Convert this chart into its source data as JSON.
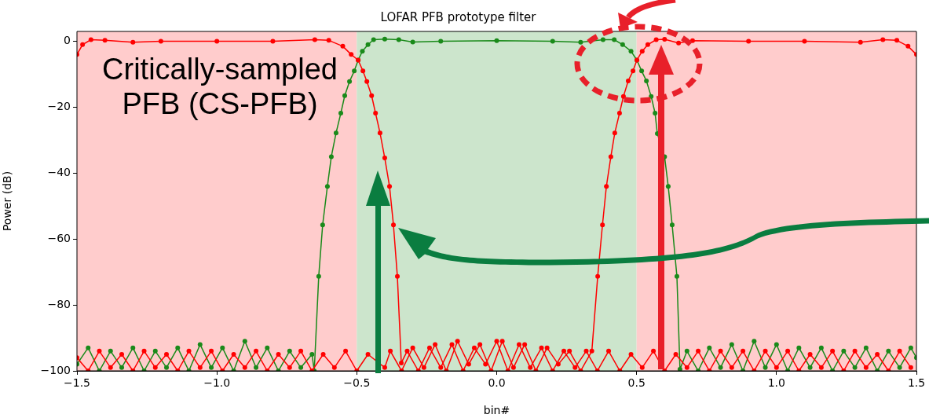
{
  "chart_data": {
    "type": "line",
    "title": "LOFAR PFB prototype filter",
    "xlabel": "bin#",
    "ylabel": "Power (dB)",
    "annotations": [
      "Critically-sampled\nPFB (CS-PFB)"
    ],
    "xlim": [
      -1.5,
      1.5
    ],
    "xticks": [
      {
        "value": -1.5,
        "label": "−1.5"
      },
      {
        "value": -1.0,
        "label": "−1.0"
      },
      {
        "value": -0.5,
        "label": "−0.5"
      },
      {
        "value": 0,
        "label": "0.0"
      },
      {
        "value": 0.5,
        "label": "0.5"
      },
      {
        "value": 1.0,
        "label": "1.0"
      },
      {
        "value": 1.5,
        "label": "1.5"
      }
    ],
    "ylim": [
      -100,
      3
    ],
    "yticks": [
      {
        "value": -100,
        "label": "−100"
      },
      {
        "value": -80,
        "label": "−80"
      },
      {
        "value": -60,
        "label": "−60"
      },
      {
        "value": -40,
        "label": "−40"
      },
      {
        "value": -20,
        "label": "−20"
      },
      0
    ],
    "grid": false,
    "legend": false,
    "marker": "circle",
    "line_style": "solid",
    "bands": [
      {
        "axis": "x",
        "from": -1.5,
        "to": -0.5,
        "color": "#ffcccc"
      },
      {
        "axis": "x",
        "from": -0.5,
        "to": 0.5,
        "color": "#cce5cc"
      },
      {
        "axis": "x",
        "from": 0.5,
        "to": 1.5,
        "color": "#ffcccc"
      }
    ],
    "series": [
      {
        "color": "#ff0000",
        "x": [
          -1.5,
          -1.48,
          -1.45,
          -1.4,
          -1.3,
          -1.2,
          -1.0,
          -0.8,
          -0.65,
          -0.6,
          -0.55,
          -0.52,
          -0.495,
          -0.478,
          -0.464,
          -0.447,
          -0.433,
          -0.417,
          -0.4,
          -0.383,
          -0.369,
          -0.355,
          -0.341,
          -0.32,
          -0.28,
          -0.24,
          -0.2,
          -0.16,
          -0.12,
          -0.08,
          -0.04,
          0,
          0.04,
          0.08,
          0.12,
          0.16,
          0.2,
          0.24,
          0.28,
          0.32,
          0.36,
          0.4,
          0.44,
          0.48,
          0.52,
          0.56,
          0.6,
          0.64,
          0.68,
          0.72,
          0.76,
          0.8,
          0.84,
          0.88,
          0.92,
          0.96,
          1.0,
          1.04,
          1.08,
          1.12,
          1.16,
          1.2,
          1.24,
          1.28,
          1.32,
          1.36,
          1.4,
          1.44,
          1.48
        ],
        "values": [
          -4,
          -1,
          0.5,
          0.3,
          -0.3,
          0,
          0,
          0,
          0.5,
          0.3,
          -1.5,
          -4,
          -5.7,
          -9,
          -12.2,
          -16.5,
          -21.8,
          -27.8,
          -35.4,
          -44,
          -55.7,
          -71.3,
          -97.6,
          -94,
          -100,
          -93,
          -99,
          -92,
          -100,
          -93,
          -98,
          -91,
          -100,
          -92,
          -99,
          -93,
          -100,
          -94,
          -99,
          -94,
          -100,
          -94,
          -100,
          -95,
          -99,
          -94,
          -100,
          -95,
          -99,
          -94,
          -100,
          -94,
          -99,
          -94,
          -100,
          -94,
          -99,
          -94,
          -100,
          -95,
          -99,
          -94,
          -100,
          -94,
          -99,
          -95,
          -100,
          -94,
          -99
        ]
      },
      {
        "color": "#ff0000",
        "x": [
          -1.5,
          -1.46,
          -1.42,
          -1.38,
          -1.34,
          -1.3,
          -1.26,
          -1.22,
          -1.18,
          -1.14,
          -1.1,
          -1.06,
          -1.02,
          -0.98,
          -0.94,
          -0.9,
          -0.86,
          -0.82,
          -0.78,
          -0.74,
          -0.7,
          -0.66,
          -0.62,
          -0.58,
          -0.54,
          -0.5,
          -0.46,
          -0.4,
          -0.38,
          -0.34,
          -0.3,
          -0.26,
          -0.22,
          -0.18,
          -0.14,
          -0.1,
          -0.06,
          -0.02,
          0.02,
          0.06,
          0.1,
          0.14,
          0.18,
          0.22,
          0.26,
          0.3,
          0.34,
          0.361,
          0.378,
          0.392,
          0.408,
          0.422,
          0.439,
          0.453,
          0.47,
          0.487,
          0.501,
          0.52,
          0.54,
          0.57,
          0.6,
          0.65,
          0.7,
          0.9,
          1.1,
          1.3,
          1.38,
          1.43,
          1.47,
          1.5
        ],
        "values": [
          -96,
          -100,
          -94,
          -99,
          -95,
          -100,
          -94,
          -99,
          -95,
          -100,
          -94,
          -99,
          -94,
          -100,
          -95,
          -99,
          -94,
          -100,
          -95,
          -99,
          -94,
          -100,
          -95,
          -99,
          -94,
          -100,
          -95,
          -99,
          -94,
          -100,
          -93,
          -99,
          -92,
          -100,
          -91,
          -98,
          -92,
          -100,
          -91,
          -99,
          -92,
          -100,
          -93,
          -98,
          -94,
          -100,
          -94,
          -71.3,
          -55.7,
          -44,
          -35,
          -27.8,
          -21.8,
          -16.7,
          -12,
          -9,
          -5.7,
          -3,
          -1,
          0.5,
          0.6,
          -0.5,
          0.2,
          0,
          0,
          -0.3,
          0.5,
          0.3,
          -1.5,
          -4
        ]
      },
      {
        "color": "#1a8a1a",
        "x": [
          -1.5,
          -1.46,
          -1.42,
          -1.38,
          -1.34,
          -1.3,
          -1.26,
          -1.22,
          -1.18,
          -1.14,
          -1.1,
          -1.06,
          -1.02,
          -0.98,
          -0.94,
          -0.9,
          -0.86,
          -0.82,
          -0.78,
          -0.74,
          -0.7,
          -0.66,
          -0.652,
          -0.636,
          -0.622,
          -0.605,
          -0.591,
          -0.574,
          -0.557,
          -0.543,
          -0.526,
          -0.509,
          -0.495,
          -0.48,
          -0.46,
          -0.44,
          -0.4,
          -0.35,
          -0.3,
          -0.2,
          0,
          0.2,
          0.3,
          0.38,
          0.42,
          0.45,
          0.48,
          0.501,
          0.518,
          0.535,
          0.552,
          0.566,
          0.574,
          0.6,
          0.613,
          0.627,
          0.644,
          0.655,
          0.68,
          0.72,
          0.76,
          0.8,
          0.84,
          0.88,
          0.92,
          0.96,
          1.0,
          1.04,
          1.08,
          1.12,
          1.16,
          1.2,
          1.24,
          1.28,
          1.32,
          1.36,
          1.4,
          1.44,
          1.48,
          1.5
        ],
        "values": [
          -98,
          -93,
          -100,
          -94,
          -99,
          -93,
          -100,
          -94,
          -99,
          -93,
          -100,
          -92,
          -99,
          -93,
          -100,
          -91,
          -99,
          -93,
          -100,
          -94,
          -99,
          -95,
          -100,
          -71.3,
          -55.7,
          -44,
          -35,
          -27.8,
          -21.8,
          -16.5,
          -12.2,
          -9,
          -5.7,
          -3,
          -1,
          0.5,
          0.7,
          0.5,
          -0.2,
          0,
          0.2,
          0,
          -0.3,
          0.5,
          0.5,
          -1,
          -3,
          -5.7,
          -9,
          -12,
          -16.7,
          -21.8,
          -28,
          -35,
          -44,
          -55.7,
          -71.3,
          -99.5,
          -94,
          -100,
          -93,
          -99,
          -92,
          -100,
          -91,
          -99,
          -92,
          -100,
          -93,
          -99,
          -93,
          -100,
          -94,
          -99,
          -93,
          -100,
          -94,
          -99,
          -93,
          -96
        ]
      }
    ]
  }
}
